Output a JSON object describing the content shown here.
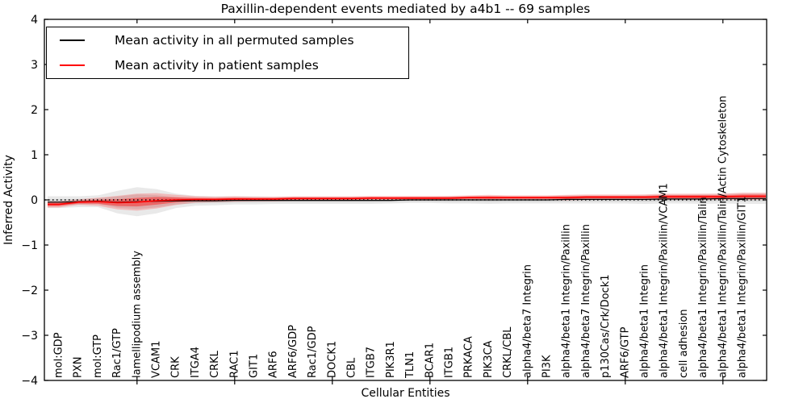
{
  "title": "Paxillin-dependent events mediated by a4b1 -- 69 samples",
  "xlabel": "Cellular Entities",
  "ylabel": "Inferred Activity",
  "legend": [
    {
      "label": "Mean activity in all permuted samples",
      "color": "#000000"
    },
    {
      "label": "Mean activity in patient samples",
      "color": "#ff0000"
    }
  ],
  "chart_data": {
    "type": "line",
    "title": "Paxillin-dependent events mediated by a4b1 -- 69 samples",
    "xlabel": "Cellular Entities",
    "ylabel": "Inferred Activity",
    "ylim": [
      -4,
      4
    ],
    "yticks": [
      -4,
      -3,
      -2,
      -1,
      0,
      1,
      2,
      3,
      4
    ],
    "grid": false,
    "legend_position": "upper left",
    "baseline": {
      "value": 0,
      "style": "dotted",
      "color": "#000000"
    },
    "x_major_tick_indices": [
      4,
      9,
      14,
      19,
      24,
      29,
      34
    ],
    "categories": [
      "mol:GDP",
      "PXN",
      "mol:GTP",
      "Rac1/GTP",
      "lamellipodium assembly",
      "VCAM1",
      "CRK",
      "ITGA4",
      "CRKL",
      "RAC1",
      "GIT1",
      "ARF6",
      "ARF6/GDP",
      "Rac1/GDP",
      "DOCK1",
      "CBL",
      "ITGB7",
      "PIK3R1",
      "TLN1",
      "BCAR1",
      "ITGB1",
      "PRKACA",
      "PIK3CA",
      "CRKL/CBL",
      "alpha4/beta7 Integrin",
      "PI3K",
      "alpha4/beta1 Integrin/Paxillin",
      "alpha4/beta7 Integrin/Paxillin",
      "p130Cas/Crk/Dock1",
      "ARF6/GTP",
      "alpha4/beta1 Integrin",
      "alpha4/beta1 Integrin/Paxillin/VCAM1",
      "cell adhesion",
      "alpha4/beta1 Integrin/Paxillin/Talin",
      "alpha4/beta1 Integrin/Paxillin/Talin/Actin Cytoskeleton",
      "alpha4/beta1 Integrin/Paxillin/GIT1"
    ],
    "series": [
      {
        "name": "Mean activity in all permuted samples",
        "color": "#000000",
        "band_color": "#999999",
        "values": [
          -0.05,
          -0.04,
          -0.03,
          -0.05,
          -0.04,
          -0.03,
          -0.02,
          -0.02,
          -0.02,
          -0.01,
          -0.01,
          -0.01,
          -0.01,
          -0.01,
          -0.01,
          -0.01,
          -0.01,
          -0.01,
          0,
          0,
          0,
          0,
          0,
          0,
          0,
          0,
          0.01,
          0.01,
          0.01,
          0.01,
          0.01,
          0.02,
          0.02,
          0.02,
          0.03,
          0.03
        ],
        "band_halfwidth": [
          0.13,
          0.12,
          0.13,
          0.25,
          0.32,
          0.27,
          0.16,
          0.11,
          0.1,
          0.09,
          0.09,
          0.08,
          0.08,
          0.08,
          0.08,
          0.08,
          0.08,
          0.07,
          0.07,
          0.07,
          0.08,
          0.08,
          0.09,
          0.08,
          0.08,
          0.08,
          0.09,
          0.09,
          0.09,
          0.09,
          0.1,
          0.1,
          0.1,
          0.11,
          0.11,
          0.12
        ]
      },
      {
        "name": "Mean activity in patient samples",
        "color": "#ff0000",
        "band_color": "#ff3030",
        "values": [
          -0.1,
          -0.05,
          -0.04,
          -0.06,
          -0.05,
          -0.02,
          0,
          0.01,
          0.01,
          0.02,
          0.02,
          0.02,
          0.03,
          0.03,
          0.03,
          0.03,
          0.04,
          0.04,
          0.04,
          0.04,
          0.04,
          0.05,
          0.05,
          0.05,
          0.05,
          0.05,
          0.05,
          0.06,
          0.06,
          0.06,
          0.06,
          0.07,
          0.07,
          0.07,
          0.07,
          0.08
        ],
        "band_halfwidth": [
          0.07,
          0.06,
          0.09,
          0.15,
          0.19,
          0.17,
          0.11,
          0.07,
          0.06,
          0.06,
          0.05,
          0.05,
          0.05,
          0.05,
          0.05,
          0.05,
          0.05,
          0.05,
          0.05,
          0.05,
          0.05,
          0.05,
          0.06,
          0.05,
          0.05,
          0.05,
          0.06,
          0.06,
          0.06,
          0.06,
          0.06,
          0.07,
          0.07,
          0.07,
          0.07,
          0.08
        ]
      }
    ]
  }
}
